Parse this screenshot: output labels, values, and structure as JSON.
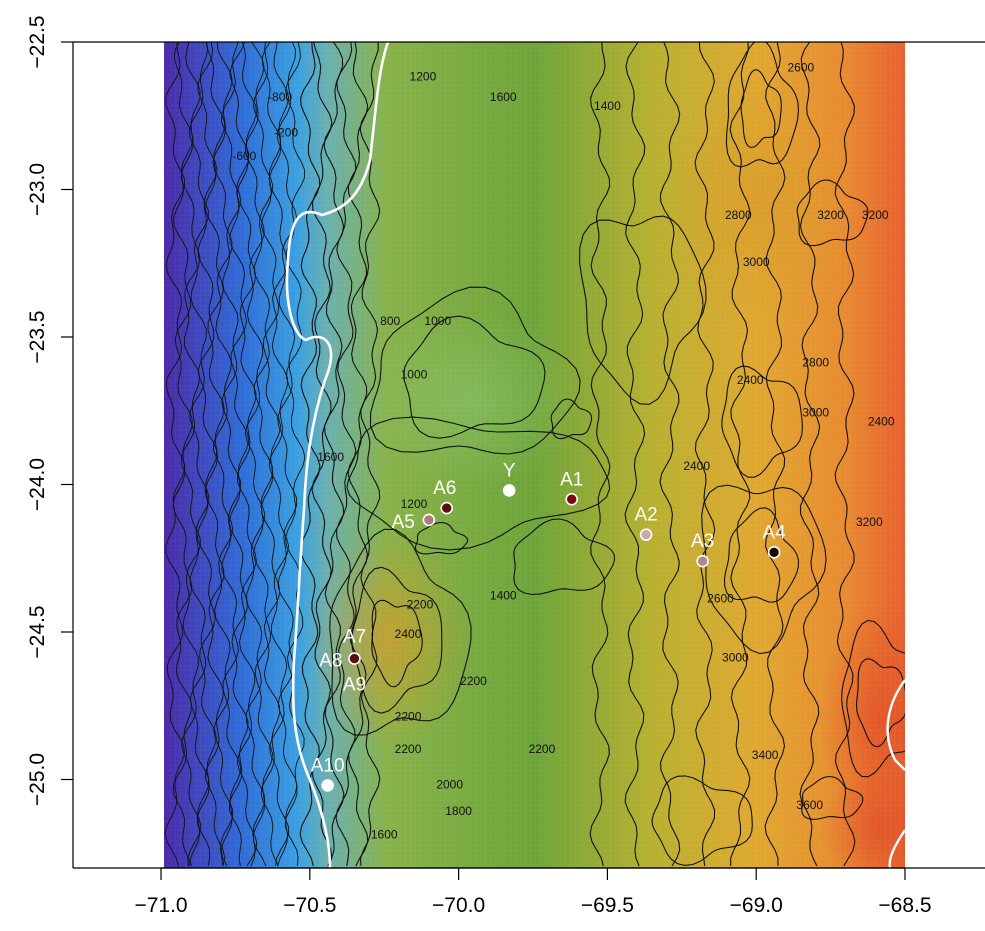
{
  "map": {
    "type": "topographic-contour-map",
    "xlim": [
      -70.99,
      -68.5
    ],
    "ylim": [
      -25.3,
      -22.5
    ],
    "grid": false,
    "x_ticks": [
      {
        "value": -71.0,
        "label": "−71.0"
      },
      {
        "value": -70.5,
        "label": "−70.5"
      },
      {
        "value": -70.0,
        "label": "−70.0"
      },
      {
        "value": -69.5,
        "label": "−69.5"
      },
      {
        "value": -69.0,
        "label": "−69.0"
      },
      {
        "value": -68.5,
        "label": "−68.5"
      }
    ],
    "y_ticks": [
      {
        "value": -22.5,
        "label": "−22.5"
      },
      {
        "value": -23.0,
        "label": "−23.0"
      },
      {
        "value": -23.5,
        "label": "−23.5"
      },
      {
        "value": -24.0,
        "label": "−24.0"
      },
      {
        "value": -24.5,
        "label": "−24.5"
      },
      {
        "value": -25.0,
        "label": "−25.0"
      }
    ],
    "color_scale": [
      "#4a2aa8",
      "#2f6fd8",
      "#3aa0e0",
      "#6ab0b0",
      "#88b24a",
      "#6ea43a",
      "#b8b030",
      "#e0a830",
      "#e88a30",
      "#e86030"
    ],
    "sites": [
      {
        "name": "A1",
        "lon": -69.62,
        "lat": -24.05,
        "fill": "#7a0a0a"
      },
      {
        "name": "A2",
        "lon": -69.37,
        "lat": -24.17,
        "fill": "#c8a8a8"
      },
      {
        "name": "A3",
        "lon": -69.18,
        "lat": -24.26,
        "fill": "#b08a8a"
      },
      {
        "name": "A4",
        "lon": -68.94,
        "lat": -24.23,
        "fill": "#1a0505"
      },
      {
        "name": "A5",
        "lon": -70.1,
        "lat": -24.12,
        "fill": "#b07a7a"
      },
      {
        "name": "A6",
        "lon": -70.04,
        "lat": -24.08,
        "fill": "#5a0f0f"
      },
      {
        "name": "A7",
        "lon": -70.35,
        "lat": -24.59,
        "fill": "#5a0f0f"
      },
      {
        "name": "A8",
        "lon": -70.35,
        "lat": -24.59,
        "fill": "#5a0f0f"
      },
      {
        "name": "A9",
        "lon": -70.35,
        "lat": -24.59,
        "fill": "#5a0f0f"
      },
      {
        "name": "Y",
        "lon": -69.83,
        "lat": -24.02,
        "fill": "#ffffff"
      },
      {
        "name": "A10",
        "lon": -70.44,
        "lat": -25.02,
        "fill": "#ffffff"
      }
    ],
    "contour_labels": [
      {
        "text": "1200",
        "lon": -70.12,
        "lat": -22.63
      },
      {
        "text": "1600",
        "lon": -69.85,
        "lat": -22.7
      },
      {
        "text": "1400",
        "lon": -69.5,
        "lat": -22.73
      },
      {
        "text": "2600",
        "lon": -68.85,
        "lat": -22.6
      },
      {
        "text": "-800",
        "lon": -70.6,
        "lat": -22.7
      },
      {
        "text": "-200",
        "lon": -70.58,
        "lat": -22.82
      },
      {
        "text": "-600",
        "lon": -70.72,
        "lat": -22.9
      },
      {
        "text": "3200",
        "lon": -68.6,
        "lat": -23.1
      },
      {
        "text": "2800",
        "lon": -69.06,
        "lat": -23.1
      },
      {
        "text": "3000",
        "lon": -69.0,
        "lat": -23.26
      },
      {
        "text": "3200",
        "lon": -68.75,
        "lat": -23.1
      },
      {
        "text": "800",
        "lon": -70.23,
        "lat": -23.46
      },
      {
        "text": "1000",
        "lon": -70.07,
        "lat": -23.46
      },
      {
        "text": "1000",
        "lon": -70.15,
        "lat": -23.64
      },
      {
        "text": "2400",
        "lon": -69.02,
        "lat": -23.66
      },
      {
        "text": "2800",
        "lon": -68.8,
        "lat": -23.6
      },
      {
        "text": "3000",
        "lon": -68.8,
        "lat": -23.77
      },
      {
        "text": "2400",
        "lon": -68.58,
        "lat": -23.8
      },
      {
        "text": "1600",
        "lon": -70.43,
        "lat": -23.92
      },
      {
        "text": "1200",
        "lon": -70.15,
        "lat": -24.08
      },
      {
        "text": "2400",
        "lon": -69.2,
        "lat": -23.95
      },
      {
        "text": "1400",
        "lon": -69.85,
        "lat": -24.39
      },
      {
        "text": "3200",
        "lon": -68.62,
        "lat": -24.14
      },
      {
        "text": "2600",
        "lon": -69.12,
        "lat": -24.4
      },
      {
        "text": "2400",
        "lon": -70.17,
        "lat": -24.52
      },
      {
        "text": "2200",
        "lon": -70.13,
        "lat": -24.42
      },
      {
        "text": "3000",
        "lon": -69.07,
        "lat": -24.6
      },
      {
        "text": "2200",
        "lon": -69.95,
        "lat": -24.68
      },
      {
        "text": "2200",
        "lon": -70.17,
        "lat": -24.8
      },
      {
        "text": "2200",
        "lon": -70.17,
        "lat": -24.91
      },
      {
        "text": "2200",
        "lon": -69.72,
        "lat": -24.91
      },
      {
        "text": "3400",
        "lon": -68.97,
        "lat": -24.93
      },
      {
        "text": "2000",
        "lon": -70.03,
        "lat": -25.03
      },
      {
        "text": "1800",
        "lon": -70.0,
        "lat": -25.12
      },
      {
        "text": "3600",
        "lon": -68.82,
        "lat": -25.1
      },
      {
        "text": "1600",
        "lon": -70.25,
        "lat": -25.2
      }
    ]
  }
}
